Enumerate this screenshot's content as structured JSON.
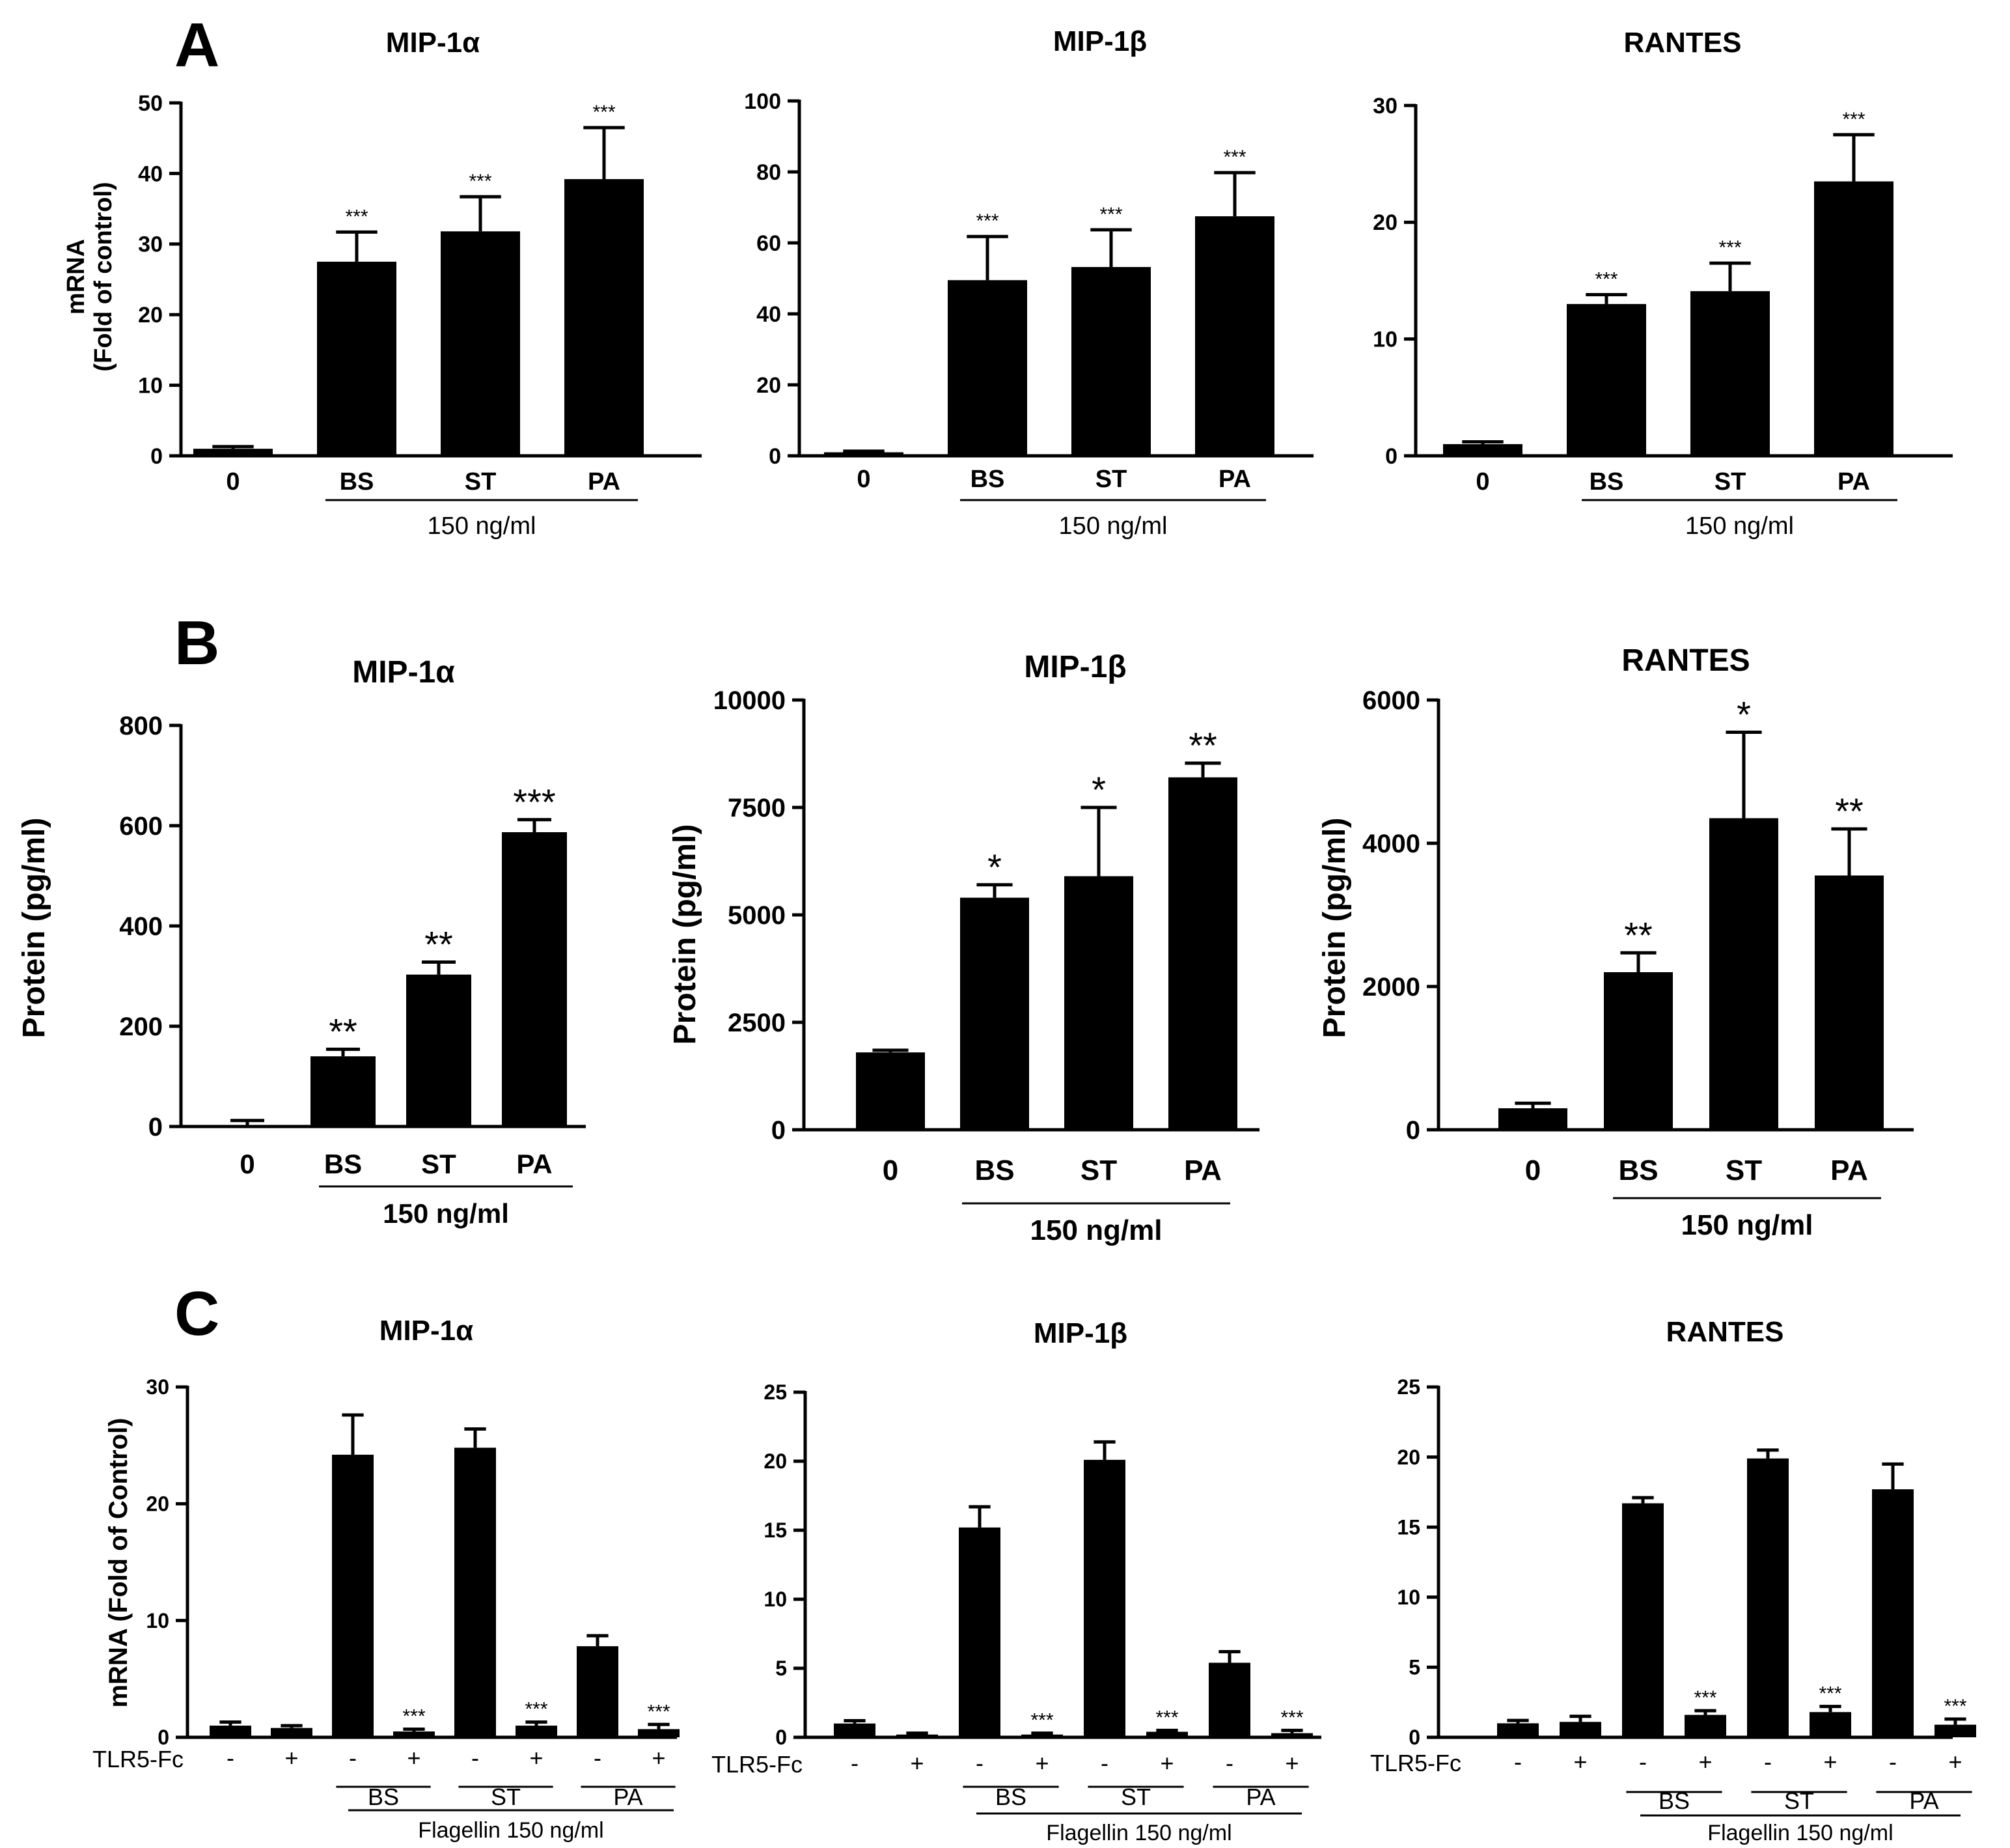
{
  "panels": [
    {
      "letter": "A",
      "row": 0
    },
    {
      "letter": "B",
      "row": 1
    },
    {
      "letter": "C",
      "row": 2
    }
  ],
  "chart_data": [
    {
      "type": "bar",
      "panel": "A",
      "title": "MIP-1α",
      "xlabel": "",
      "ylabel": "mRNA\n(Fold of control)",
      "ylim": [
        0,
        50
      ],
      "yticks": [
        "0",
        "10",
        "20",
        "30",
        "40",
        "50"
      ],
      "categories": [
        "0",
        "BS",
        "ST",
        "PA"
      ],
      "values": [
        1,
        27.5,
        31.8,
        39.2
      ],
      "errors": [
        0.3,
        4.2,
        4.9,
        7.3
      ],
      "significance": [
        "",
        "***",
        "***",
        "***"
      ],
      "group_label": "150 ng/ml"
    },
    {
      "type": "bar",
      "panel": "A",
      "title": "MIP-1β",
      "xlabel": "",
      "ylabel": "",
      "ylim": [
        0,
        100
      ],
      "yticks": [
        "0",
        "20",
        "40",
        "60",
        "80",
        "100"
      ],
      "categories": [
        "0",
        "BS",
        "ST",
        "PA"
      ],
      "values": [
        1,
        49.5,
        53.2,
        67.5
      ],
      "errors": [
        0.3,
        12.3,
        10.5,
        12.3
      ],
      "significance": [
        "",
        "***",
        "***",
        "***"
      ],
      "group_label": "150 ng/ml"
    },
    {
      "type": "bar",
      "panel": "A",
      "title": "RANTES",
      "xlabel": "",
      "ylabel": "",
      "ylim": [
        0,
        30
      ],
      "yticks": [
        "0",
        "10",
        "20",
        "30"
      ],
      "categories": [
        "0",
        "BS",
        "ST",
        "PA"
      ],
      "values": [
        1,
        13,
        14.1,
        23.5
      ],
      "errors": [
        0.2,
        0.8,
        2.4,
        4.0
      ],
      "significance": [
        "",
        "***",
        "***",
        "***"
      ],
      "group_label": "150 ng/ml"
    },
    {
      "type": "bar",
      "panel": "B",
      "title": "MIP-1α",
      "xlabel": "",
      "ylabel": "Protein (pg/ml)",
      "ylim": [
        0,
        800
      ],
      "yticks": [
        "0",
        "200",
        "400",
        "600",
        "800"
      ],
      "categories": [
        "0",
        "BS",
        "ST",
        "PA"
      ],
      "values": [
        3,
        140,
        303,
        587
      ],
      "errors": [
        9,
        14,
        25,
        25
      ],
      "significance": [
        "",
        "**",
        "**",
        "***"
      ],
      "group_label": "150 ng/ml"
    },
    {
      "type": "bar",
      "panel": "B",
      "title": "MIP-1β",
      "xlabel": "",
      "ylabel": "Protein (pg/ml)",
      "ylim": [
        0,
        10000
      ],
      "yticks": [
        "0",
        "2500",
        "5000",
        "7500",
        "10000"
      ],
      "categories": [
        "0",
        "BS",
        "ST",
        "PA"
      ],
      "values": [
        1800,
        5400,
        5900,
        8200
      ],
      "errors": [
        50,
        300,
        1600,
        330
      ],
      "significance": [
        "",
        "*",
        "*",
        "**"
      ],
      "group_label": "150 ng/ml"
    },
    {
      "type": "bar",
      "panel": "B",
      "title": "RANTES",
      "xlabel": "",
      "ylabel": "Protein (pg/ml)",
      "ylim": [
        0,
        6000
      ],
      "yticks": [
        "0",
        "2000",
        "4000",
        "6000"
      ],
      "categories": [
        "0",
        "BS",
        "ST",
        "PA"
      ],
      "values": [
        300,
        2200,
        4350,
        3550
      ],
      "errors": [
        70,
        270,
        1200,
        650
      ],
      "significance": [
        "",
        "**",
        "*",
        "**"
      ],
      "group_label": "150 ng/ml"
    },
    {
      "type": "bar",
      "panel": "C",
      "title": "MIP-1α",
      "xlabel": "",
      "ylabel": "mRNA (Fold of Control)",
      "ylim": [
        0,
        30
      ],
      "yticks": [
        "0",
        "10",
        "20",
        "30"
      ],
      "tlr_label": "TLR5-Fc",
      "categories": [
        "-",
        "+",
        "-",
        "+",
        "-",
        "+",
        "-",
        "+"
      ],
      "subgroups": [
        "BS",
        "ST",
        "PA"
      ],
      "values": [
        1,
        0.8,
        24.2,
        0.5,
        24.8,
        1.0,
        7.8,
        0.7
      ],
      "errors": [
        0.3,
        0.2,
        3.4,
        0.2,
        1.6,
        0.3,
        0.9,
        0.4
      ],
      "significance": [
        "",
        "",
        "",
        "***",
        "",
        "***",
        "",
        "***"
      ],
      "group_label": "Flagellin 150 ng/ml"
    },
    {
      "type": "bar",
      "panel": "C",
      "title": "MIP-1β",
      "xlabel": "",
      "ylabel": "",
      "ylim": [
        0,
        25
      ],
      "yticks": [
        "0",
        "5",
        "10",
        "15",
        "20",
        "25"
      ],
      "tlr_label": "TLR5-Fc",
      "categories": [
        "-",
        "+",
        "-",
        "+",
        "-",
        "+",
        "-",
        "+"
      ],
      "subgroups": [
        "BS",
        "ST",
        "PA"
      ],
      "values": [
        1,
        0.2,
        15.2,
        0.2,
        20.1,
        0.4,
        5.4,
        0.3
      ],
      "errors": [
        0.2,
        0.1,
        1.5,
        0.1,
        1.3,
        0.1,
        0.8,
        0.2
      ],
      "significance": [
        "",
        "",
        "",
        "***",
        "",
        "***",
        "",
        "***"
      ],
      "group_label": "Flagellin 150 ng/ml"
    },
    {
      "type": "bar",
      "panel": "C",
      "title": "RANTES",
      "xlabel": "",
      "ylabel": "",
      "ylim": [
        0,
        25
      ],
      "yticks": [
        "0",
        "5",
        "10",
        "15",
        "20",
        "25"
      ],
      "tlr_label": "TLR5-Fc",
      "categories": [
        "-",
        "+",
        "-",
        "+",
        "-",
        "+",
        "-",
        "+"
      ],
      "subgroups": [
        "BS",
        "ST",
        "PA"
      ],
      "values": [
        1,
        1.1,
        16.7,
        1.6,
        19.9,
        1.8,
        17.7,
        0.9
      ],
      "errors": [
        0.2,
        0.4,
        0.4,
        0.3,
        0.6,
        0.4,
        1.8,
        0.4
      ],
      "significance": [
        "",
        "",
        "",
        "***",
        "",
        "***",
        "",
        "***"
      ],
      "group_label": "Flagellin 150 ng/ml"
    }
  ]
}
